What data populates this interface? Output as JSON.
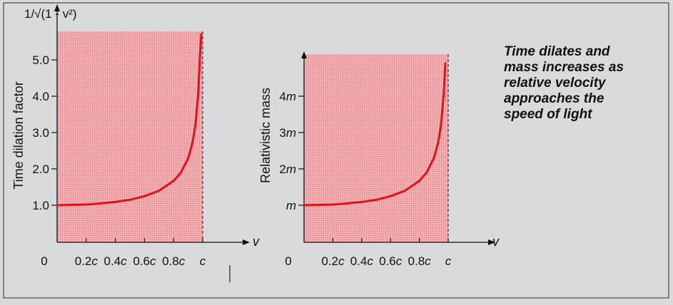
{
  "caption": {
    "lines": [
      "Time dilates and",
      "mass increases as",
      "relative velocity",
      "approaches the",
      "speed of light"
    ]
  },
  "colors": {
    "background": "#d9dadb",
    "shaded_region": "#f1a9ad",
    "curve": "#e0121b",
    "axis": "#111111"
  },
  "chart_data": [
    {
      "type": "line",
      "title": "",
      "xlabel": "v",
      "ylabel": "Time dilation factor",
      "ylabel_formula": "1/√(1 - v²)",
      "origin_label": "0",
      "x_ticks": [
        {
          "v": 0.2,
          "label": "0.2c"
        },
        {
          "v": 0.4,
          "label": "0.4c"
        },
        {
          "v": 0.6,
          "label": "0.6c"
        },
        {
          "v": 0.8,
          "label": "0.8c"
        },
        {
          "v": 1.0,
          "label": "c"
        }
      ],
      "y_ticks": [
        {
          "v": 1.0,
          "label": "1.0"
        },
        {
          "v": 2.0,
          "label": "2.0"
        },
        {
          "v": 3.0,
          "label": "3.0"
        },
        {
          "v": 4.0,
          "label": "4.0"
        },
        {
          "v": 5.0,
          "label": "5.0"
        }
      ],
      "xlim": [
        0,
        1
      ],
      "ylim": [
        0,
        6
      ],
      "shaded_x_range": [
        0,
        1
      ],
      "asymptote_x": 1.0,
      "series": [
        {
          "x": [
            0,
            0.2,
            0.3,
            0.4,
            0.5,
            0.6,
            0.7,
            0.8,
            0.85,
            0.9,
            0.93,
            0.95,
            0.97,
            0.98,
            0.99
          ],
          "y": [
            1.0,
            1.02,
            1.05,
            1.09,
            1.15,
            1.25,
            1.4,
            1.67,
            1.9,
            2.29,
            2.72,
            3.2,
            4.11,
            5.03,
            5.7
          ]
        }
      ]
    },
    {
      "type": "line",
      "title": "",
      "xlabel": "v",
      "ylabel": "Relativistic mass",
      "origin_label": "0",
      "x_ticks": [
        {
          "v": 0.2,
          "label": "0.2c"
        },
        {
          "v": 0.4,
          "label": "0.4c"
        },
        {
          "v": 0.6,
          "label": "0.6c"
        },
        {
          "v": 0.8,
          "label": "0.8c"
        },
        {
          "v": 1.0,
          "label": "c"
        }
      ],
      "y_ticks": [
        {
          "v": 1,
          "label": "m"
        },
        {
          "v": 2,
          "label": "2m"
        },
        {
          "v": 3,
          "label": "3m"
        },
        {
          "v": 4,
          "label": "4m"
        }
      ],
      "xlim": [
        0,
        1
      ],
      "ylim": [
        0,
        5
      ],
      "shaded_x_range": [
        0,
        1
      ],
      "asymptote_x": 1.0,
      "series": [
        {
          "x": [
            0,
            0.2,
            0.3,
            0.4,
            0.5,
            0.6,
            0.7,
            0.8,
            0.85,
            0.9,
            0.93,
            0.95,
            0.97,
            0.98
          ],
          "y": [
            1.0,
            1.02,
            1.05,
            1.09,
            1.15,
            1.25,
            1.4,
            1.67,
            1.9,
            2.29,
            2.72,
            3.2,
            4.11,
            4.9
          ]
        }
      ]
    }
  ]
}
